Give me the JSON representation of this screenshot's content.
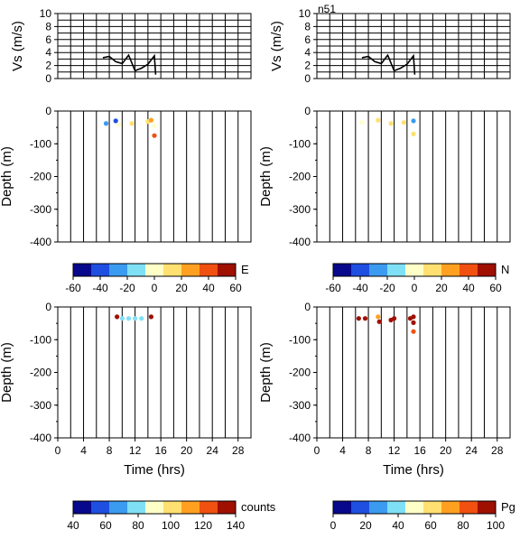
{
  "station_label": "n51",
  "time_axis": {
    "label": "Time (hrs)",
    "ticks": [
      0,
      4,
      8,
      12,
      16,
      20,
      24,
      28
    ],
    "range": [
      0,
      30
    ]
  },
  "vs_axis": {
    "label": "Vs (m/s)",
    "ticks": [
      0,
      2,
      4,
      6,
      8,
      10
    ],
    "range": [
      0,
      10
    ]
  },
  "depth_axis": {
    "label": "Depth (m)",
    "ticks": [
      0,
      -100,
      -200,
      -300,
      -400
    ],
    "range": [
      -400,
      0
    ]
  },
  "colorbars": [
    {
      "id": "cb-e",
      "label": "E",
      "ticks": [
        -60,
        -40,
        -20,
        0,
        20,
        40,
        60
      ],
      "range": [
        -60,
        60
      ]
    },
    {
      "id": "cb-n",
      "label": "N",
      "ticks": [
        -60,
        -40,
        -20,
        0,
        20,
        40,
        60
      ],
      "range": [
        -60,
        60
      ]
    },
    {
      "id": "cb-counts",
      "label": "counts",
      "ticks": [
        40,
        60,
        80,
        100,
        120,
        140
      ],
      "range": [
        40,
        140
      ]
    },
    {
      "id": "cb-pg",
      "label": "Pg",
      "ticks": [
        0,
        20,
        40,
        60,
        80,
        100
      ],
      "range": [
        0,
        100
      ]
    }
  ],
  "colors": {
    "palette": [
      "#08088c",
      "#1f4fe0",
      "#3a9bf0",
      "#7fe0f5",
      "#ffffc8",
      "#ffe070",
      "#ffa020",
      "#f05010",
      "#a01000"
    ]
  },
  "chart_data": [
    {
      "type": "line",
      "panel": "vs-left",
      "x": [
        7,
        8,
        9,
        10,
        11,
        12,
        13,
        14,
        15,
        15.2
      ],
      "y": [
        3.2,
        3.4,
        2.6,
        2.3,
        3.6,
        1.2,
        1.6,
        2.2,
        3.5,
        0.6
      ]
    },
    {
      "type": "line",
      "panel": "vs-right",
      "x": [
        7,
        8,
        9,
        10,
        11,
        12,
        13,
        14,
        15,
        15.2
      ],
      "y": [
        3.2,
        3.4,
        2.6,
        2.3,
        3.6,
        1.2,
        1.6,
        2.2,
        3.5,
        0.6
      ]
    },
    {
      "type": "scatter",
      "panel": "depth-e",
      "points": [
        {
          "x": 7.5,
          "y": -38,
          "v": -30
        },
        {
          "x": 9,
          "y": -30,
          "v": -35
        },
        {
          "x": 9.5,
          "y": -42,
          "v": -5
        },
        {
          "x": 11.5,
          "y": -38,
          "v": 10
        },
        {
          "x": 14,
          "y": -32,
          "v": 15
        },
        {
          "x": 14.5,
          "y": -28,
          "v": 25
        },
        {
          "x": 15,
          "y": -45,
          "v": 5
        },
        {
          "x": 15,
          "y": -75,
          "v": 45
        }
      ]
    },
    {
      "type": "scatter",
      "panel": "depth-n",
      "points": [
        {
          "x": 7,
          "y": -35,
          "v": -5
        },
        {
          "x": 9.5,
          "y": -28,
          "v": 15
        },
        {
          "x": 11.5,
          "y": -38,
          "v": 10
        },
        {
          "x": 13.5,
          "y": -35,
          "v": 8
        },
        {
          "x": 15,
          "y": -30,
          "v": -30
        },
        {
          "x": 15,
          "y": -70,
          "v": 10
        }
      ]
    },
    {
      "type": "scatter",
      "panel": "depth-counts",
      "points": [
        {
          "x": 9.2,
          "y": -30,
          "v": 135
        },
        {
          "x": 10,
          "y": -35,
          "v": 80
        },
        {
          "x": 11,
          "y": -35,
          "v": 80
        },
        {
          "x": 12,
          "y": -35,
          "v": 80
        },
        {
          "x": 13,
          "y": -35,
          "v": 80
        },
        {
          "x": 14.5,
          "y": -30,
          "v": 135
        }
      ]
    },
    {
      "type": "scatter",
      "panel": "depth-pg",
      "points": [
        {
          "x": 6.5,
          "y": -35,
          "v": 95
        },
        {
          "x": 7.5,
          "y": -35,
          "v": 95
        },
        {
          "x": 9.5,
          "y": -30,
          "v": 70
        },
        {
          "x": 9.7,
          "y": -45,
          "v": 100
        },
        {
          "x": 11.5,
          "y": -40,
          "v": 100
        },
        {
          "x": 12,
          "y": -35,
          "v": 95
        },
        {
          "x": 14.5,
          "y": -35,
          "v": 100
        },
        {
          "x": 15,
          "y": -30,
          "v": 90
        },
        {
          "x": 15,
          "y": -48,
          "v": 100
        },
        {
          "x": 15,
          "y": -75,
          "v": 80
        }
      ]
    }
  ]
}
